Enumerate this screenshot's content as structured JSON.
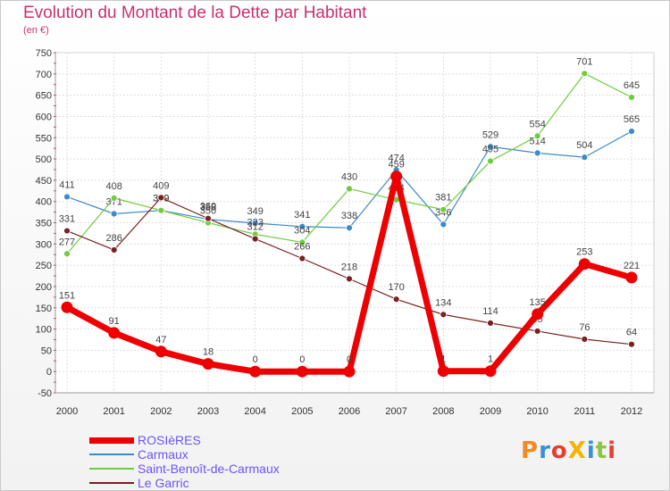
{
  "header": {
    "title": "Evolution du Montant de la Dette par Habitant",
    "subtitle": "(en €)"
  },
  "brand": {
    "logo_text": "ProXiti",
    "letter_colors": [
      "#f08a24",
      "#3a8fd6",
      "#e83e2f",
      "#f5b400",
      "#3a8fd6",
      "#8cc63f",
      "#e83e2f"
    ]
  },
  "chart_data": {
    "type": "line",
    "title": "Evolution du Montant de la Dette par Habitant",
    "subtitle": "(en €)",
    "xlabel": "",
    "ylabel": "",
    "ylim": [
      -50,
      750
    ],
    "yticks": [
      -50,
      0,
      50,
      100,
      150,
      200,
      250,
      300,
      350,
      400,
      450,
      500,
      550,
      600,
      650,
      700,
      750
    ],
    "grid": true,
    "legend_position": "bottom-left",
    "x": [
      "2000",
      "2001",
      "2002",
      "2003",
      "2004",
      "2005",
      "2006",
      "2007",
      "2008",
      "2009",
      "2010",
      "2011",
      "2012"
    ],
    "series": [
      {
        "name": "ROSIèRES",
        "color": "#ee0000",
        "emphasis": true,
        "values": [
          151,
          91,
          47,
          18,
          0,
          0,
          0,
          459,
          1,
          1,
          135,
          253,
          221
        ],
        "labels": [
          "151",
          "91",
          "47",
          "18",
          "0",
          "0",
          "0",
          "459",
          "1",
          "1",
          "135",
          "253",
          "221"
        ]
      },
      {
        "name": "Carmaux",
        "color": "#3d89c9",
        "values": [
          411,
          371,
          379,
          358,
          349,
          341,
          338,
          474,
          346,
          529,
          514,
          504,
          565
        ],
        "labels": [
          "411",
          "371",
          "379",
          "358",
          "349",
          "341",
          "338",
          "474",
          "346",
          "529",
          "514",
          "504",
          "565"
        ]
      },
      {
        "name": "Saint-Benoît-de-Carmaux",
        "color": "#6fcc3f",
        "values": [
          277,
          408,
          379,
          350,
          323,
          304,
          430,
          404,
          381,
          495,
          554,
          701,
          645
        ],
        "labels": [
          "277",
          "408",
          "379",
          "350",
          "323",
          "304",
          "430",
          "404",
          "381",
          "495",
          "554",
          "701",
          "645"
        ]
      },
      {
        "name": "Le Garric",
        "color": "#7a2020",
        "values": [
          331,
          286,
          409,
          360,
          312,
          266,
          218,
          170,
          134,
          114,
          95,
          76,
          64
        ],
        "labels": [
          "331",
          "286",
          "409",
          "360",
          "312",
          "266",
          "218",
          "170",
          "134",
          "114",
          "95",
          "76",
          "64"
        ]
      }
    ]
  }
}
